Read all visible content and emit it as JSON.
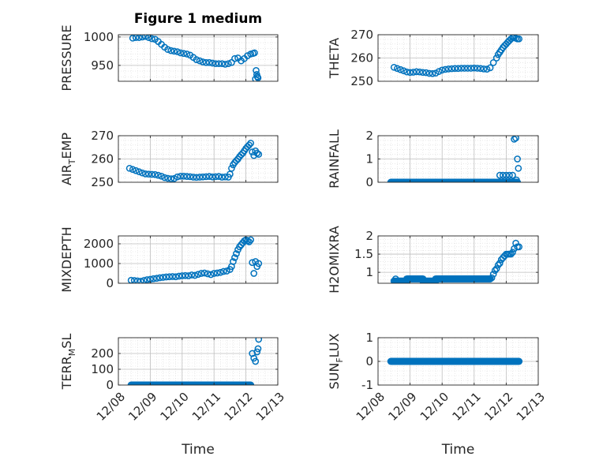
{
  "colors": {
    "marker": "#0072BD",
    "axis": "#262626",
    "grid": "#c8c8c8"
  },
  "chart_data": [
    {
      "type": "scatter",
      "title": "Figure 1 medium",
      "ylabel": "PRESSURE",
      "xlim": [
        0,
        5
      ],
      "ylim": [
        922,
        1004
      ],
      "yticks": [
        950,
        1000
      ],
      "ytick_labels": [
        "950",
        "1000"
      ],
      "xtick_labels": [
        "12/08",
        "12/09",
        "12/10",
        "12/11",
        "12/12",
        "12/13"
      ],
      "show_xtick_labels": false,
      "grid": "on",
      "xlabel": "",
      "x": [
        0.45,
        0.55,
        0.65,
        0.75,
        0.85,
        0.95,
        1.05,
        1.15,
        1.25,
        1.35,
        1.45,
        1.55,
        1.65,
        1.75,
        1.85,
        1.95,
        2.05,
        2.15,
        2.25,
        2.35,
        2.45,
        2.55,
        2.65,
        2.75,
        2.85,
        2.95,
        3.05,
        3.15,
        3.25,
        3.35,
        3.45,
        3.55,
        3.65,
        3.75,
        3.85,
        3.95,
        4.05,
        4.15,
        4.22,
        4.27,
        4.3,
        4.32,
        4.34,
        4.36,
        4.38
      ],
      "values": [
        998,
        999,
        999,
        1000,
        1001,
        999,
        997,
        996,
        992,
        987,
        982,
        978,
        976,
        975,
        974,
        972,
        971,
        970,
        968,
        964,
        960,
        958,
        956,
        955,
        955,
        954,
        953,
        953,
        953,
        952,
        953,
        955,
        962,
        963,
        958,
        962,
        967,
        970,
        971,
        972,
        926,
        941,
        934,
        930,
        928
      ],
      "line_runs": []
    },
    {
      "type": "scatter",
      "ylabel": "THETA",
      "xlim": [
        0,
        5
      ],
      "ylim": [
        250,
        270
      ],
      "yticks": [
        250,
        260,
        270
      ],
      "ytick_labels": [
        "250",
        "260",
        "270"
      ],
      "xtick_labels": [
        "12/08",
        "12/09",
        "12/10",
        "12/11",
        "12/12",
        "12/13"
      ],
      "show_xtick_labels": false,
      "grid": "on",
      "xlabel": "",
      "x": [
        0.5,
        0.6,
        0.7,
        0.8,
        0.9,
        1.0,
        1.1,
        1.2,
        1.3,
        1.4,
        1.5,
        1.6,
        1.7,
        1.8,
        1.9,
        2.0,
        2.1,
        2.2,
        2.3,
        2.4,
        2.5,
        2.6,
        2.7,
        2.8,
        2.9,
        3.0,
        3.1,
        3.2,
        3.3,
        3.4,
        3.5,
        3.6,
        3.7,
        3.75,
        3.8,
        3.85,
        3.9,
        3.95,
        4.0,
        4.05,
        4.1,
        4.15,
        4.2,
        4.25,
        4.3,
        4.35,
        4.4
      ],
      "values": [
        256,
        255.5,
        255,
        254.5,
        254,
        253.8,
        253.9,
        254.1,
        254,
        253.8,
        253.7,
        253.4,
        253.3,
        253.5,
        254.2,
        254.8,
        255.1,
        255.3,
        255.4,
        255.5,
        255.5,
        255.6,
        255.6,
        255.6,
        255.6,
        255.7,
        255.6,
        255.5,
        255.3,
        255.2,
        255.8,
        258,
        260,
        261.5,
        262.5,
        263.5,
        264.5,
        265.3,
        266,
        266.8,
        267.5,
        268.2,
        268.8,
        269,
        268.5,
        268.2,
        268.2
      ],
      "line_runs": []
    },
    {
      "type": "scatter",
      "ylabel": "AIR_TEMP",
      "xlim": [
        0,
        5
      ],
      "ylim": [
        250,
        270
      ],
      "yticks": [
        250,
        260,
        270
      ],
      "ytick_labels": [
        "250",
        "260",
        "270"
      ],
      "xtick_labels": [
        "12/08",
        "12/09",
        "12/10",
        "12/11",
        "12/12",
        "12/13"
      ],
      "show_xtick_labels": false,
      "grid": "on",
      "xlabel": "",
      "x": [
        0.35,
        0.45,
        0.55,
        0.65,
        0.75,
        0.85,
        0.95,
        1.05,
        1.15,
        1.25,
        1.35,
        1.45,
        1.55,
        1.65,
        1.75,
        1.85,
        1.95,
        2.05,
        2.15,
        2.25,
        2.35,
        2.45,
        2.55,
        2.65,
        2.75,
        2.85,
        2.95,
        3.05,
        3.15,
        3.25,
        3.35,
        3.45,
        3.5,
        3.55,
        3.6,
        3.65,
        3.7,
        3.75,
        3.8,
        3.85,
        3.9,
        3.95,
        4.0,
        4.05,
        4.1,
        4.15,
        4.2,
        4.25,
        4.3,
        4.35,
        4.4
      ],
      "values": [
        256,
        255.5,
        255,
        254.5,
        254,
        253.6,
        253.5,
        253.4,
        253.3,
        253,
        252.6,
        252,
        251.7,
        251.5,
        251.6,
        252.3,
        252.6,
        252.6,
        252.5,
        252.4,
        252.2,
        252.1,
        252.2,
        252.3,
        252.4,
        252.5,
        252.3,
        252.4,
        252.5,
        252.2,
        252.3,
        252.2,
        253.5,
        256,
        257.5,
        258.5,
        259.3,
        260,
        261,
        261.8,
        262.5,
        263.5,
        264.5,
        265.3,
        266,
        266.8,
        263,
        261.5,
        263.5,
        262.5,
        262
      ],
      "line_runs": []
    },
    {
      "type": "scatter",
      "ylabel": "RAINFALL",
      "xlim": [
        0,
        5
      ],
      "ylim": [
        0,
        2
      ],
      "yticks": [
        0,
        1,
        2
      ],
      "ytick_labels": [
        "0",
        "1",
        "2"
      ],
      "xtick_labels": [
        "12/08",
        "12/09",
        "12/10",
        "12/11",
        "12/12",
        "12/13"
      ],
      "show_xtick_labels": false,
      "grid": "on",
      "xlabel": "",
      "x": [
        3.8,
        3.9,
        4.0,
        4.05,
        4.1,
        4.15,
        4.2,
        4.25,
        4.3,
        4.32,
        4.35,
        4.38
      ],
      "values": [
        0.3,
        0.3,
        0.3,
        0,
        0.3,
        0,
        0.3,
        1.85,
        1.9,
        0.1,
        1.0,
        0.6
      ],
      "line_runs": [
        [
          0.4,
          4.35,
          0
        ]
      ]
    },
    {
      "type": "scatter",
      "ylabel": "MIXDEPTH",
      "xlim": [
        0,
        5
      ],
      "ylim": [
        0,
        2400
      ],
      "yticks": [
        0,
        1000,
        2000
      ],
      "ytick_labels": [
        "0",
        "1000",
        "2000"
      ],
      "xtick_labels": [
        "12/08",
        "12/09",
        "12/10",
        "12/11",
        "12/12",
        "12/13"
      ],
      "show_xtick_labels": false,
      "grid": "on",
      "xlabel": "",
      "x": [
        0.4,
        0.5,
        0.6,
        0.7,
        0.8,
        0.9,
        1.0,
        1.1,
        1.2,
        1.3,
        1.4,
        1.5,
        1.6,
        1.7,
        1.8,
        1.9,
        2.0,
        2.1,
        2.2,
        2.3,
        2.4,
        2.5,
        2.6,
        2.7,
        2.8,
        2.9,
        3.0,
        3.1,
        3.2,
        3.3,
        3.4,
        3.5,
        3.55,
        3.6,
        3.65,
        3.7,
        3.75,
        3.8,
        3.85,
        3.9,
        3.95,
        4.0,
        4.05,
        4.1,
        4.15,
        4.2,
        4.25,
        4.3,
        4.35,
        4.4
      ],
      "values": [
        150,
        140,
        120,
        100,
        140,
        180,
        200,
        230,
        250,
        280,
        300,
        320,
        330,
        340,
        330,
        360,
        380,
        390,
        380,
        420,
        400,
        450,
        500,
        520,
        480,
        440,
        500,
        520,
        550,
        600,
        620,
        700,
        850,
        1100,
        1300,
        1500,
        1700,
        1850,
        1950,
        2050,
        2150,
        2200,
        2150,
        2100,
        2200,
        1050,
        500,
        1100,
        850,
        1000
      ],
      "line_runs": []
    },
    {
      "type": "scatter",
      "ylabel": "H2OMIXRA",
      "xlim": [
        0,
        5
      ],
      "ylim": [
        0.7,
        2
      ],
      "yticks": [
        1,
        1.5,
        2
      ],
      "ytick_labels": [
        "1",
        "1.5",
        "2"
      ],
      "xtick_labels": [
        "12/08",
        "12/09",
        "12/10",
        "12/11",
        "12/12",
        "12/13"
      ],
      "show_xtick_labels": false,
      "grid": "on",
      "xlabel": "",
      "x": [
        0.55,
        3.55,
        3.6,
        3.65,
        3.7,
        3.75,
        3.8,
        3.85,
        3.9,
        3.95,
        4.0,
        4.05,
        4.1,
        4.15,
        4.2,
        4.25,
        4.3,
        4.35,
        4.4
      ],
      "values": [
        0.82,
        0.85,
        0.95,
        1.05,
        1.1,
        1.2,
        1.25,
        1.35,
        1.4,
        1.45,
        1.5,
        1.5,
        1.5,
        1.5,
        1.55,
        1.65,
        1.8,
        1.7,
        1.7
      ],
      "line_runs": [
        [
          0.5,
          0.9,
          0.76
        ],
        [
          0.9,
          1.4,
          0.82
        ],
        [
          1.4,
          1.8,
          0.76
        ],
        [
          1.8,
          2.5,
          0.82
        ],
        [
          2.5,
          3.5,
          0.82
        ]
      ]
    },
    {
      "type": "scatter",
      "ylabel": "TERR_MSL",
      "xlim": [
        0,
        5
      ],
      "ylim": [
        0,
        300
      ],
      "yticks": [
        0,
        100,
        200
      ],
      "ytick_labels": [
        "0",
        "100",
        "200"
      ],
      "xtick_labels": [
        "12/08",
        "12/09",
        "12/10",
        "12/11",
        "12/12",
        "12/13"
      ],
      "show_xtick_labels": true,
      "grid": "on",
      "xlabel": "Time",
      "x": [
        4.2,
        4.25,
        4.3,
        4.35,
        4.38,
        4.4
      ],
      "values": [
        200,
        170,
        150,
        210,
        230,
        290
      ],
      "line_runs": [
        [
          0.4,
          4.15,
          0
        ]
      ]
    },
    {
      "type": "scatter",
      "ylabel": "SUN_FLUX",
      "xlim": [
        0,
        5
      ],
      "ylim": [
        -1,
        1
      ],
      "yticks": [
        -1,
        0,
        1
      ],
      "ytick_labels": [
        "-1",
        "0",
        "1"
      ],
      "xtick_labels": [
        "12/08",
        "12/09",
        "12/10",
        "12/11",
        "12/12",
        "12/13"
      ],
      "show_xtick_labels": true,
      "grid": "on",
      "xlabel": "Time",
      "x": [],
      "values": [],
      "line_runs": [
        [
          0.4,
          4.4,
          0
        ]
      ]
    }
  ]
}
